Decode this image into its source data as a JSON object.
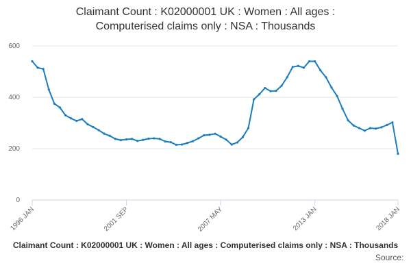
{
  "chart_data": {
    "type": "line",
    "title": [
      "Claimant Count : K02000001 UK : Women : All ages :",
      "Computerised claims only : NSA : Thousands"
    ],
    "footer_title": "Claimant Count : K02000001 UK : Women : All ages : Computerised claims only : NSA : Thousands",
    "source": "Source:",
    "categories": [
      "1996 JAN",
      null,
      null,
      null,
      null,
      null,
      null,
      null,
      null,
      null,
      null,
      null,
      null,
      null,
      null,
      null,
      null,
      "2001 SEP",
      null,
      null,
      null,
      null,
      null,
      null,
      null,
      null,
      null,
      null,
      null,
      null,
      null,
      null,
      null,
      null,
      "2007 MAY",
      null,
      null,
      null,
      null,
      null,
      null,
      null,
      null,
      null,
      null,
      null,
      null,
      null,
      null,
      null,
      null,
      "2013 JAN",
      null,
      null,
      null,
      null,
      null,
      null,
      null,
      null,
      null,
      null,
      null,
      null,
      null,
      null,
      "2018 JAN"
    ],
    "series": [
      {
        "color": "#1a7bbd",
        "values": [
          540,
          515,
          510,
          430,
          375,
          360,
          330,
          318,
          308,
          315,
          295,
          284,
          272,
          258,
          250,
          238,
          233,
          236,
          238,
          230,
          234,
          239,
          240,
          238,
          228,
          225,
          215,
          216,
          222,
          229,
          240,
          252,
          254,
          258,
          247,
          235,
          216,
          224,
          245,
          280,
          392,
          412,
          436,
          424,
          425,
          445,
          478,
          518,
          522,
          515,
          540,
          540,
          505,
          478,
          438,
          405,
          355,
          310,
          290,
          280,
          270,
          280,
          278,
          283,
          292,
          302,
          180
        ]
      }
    ],
    "ylim": [
      0,
      600
    ],
    "yticks": [
      0,
      200,
      400,
      600
    ],
    "grid": true
  }
}
